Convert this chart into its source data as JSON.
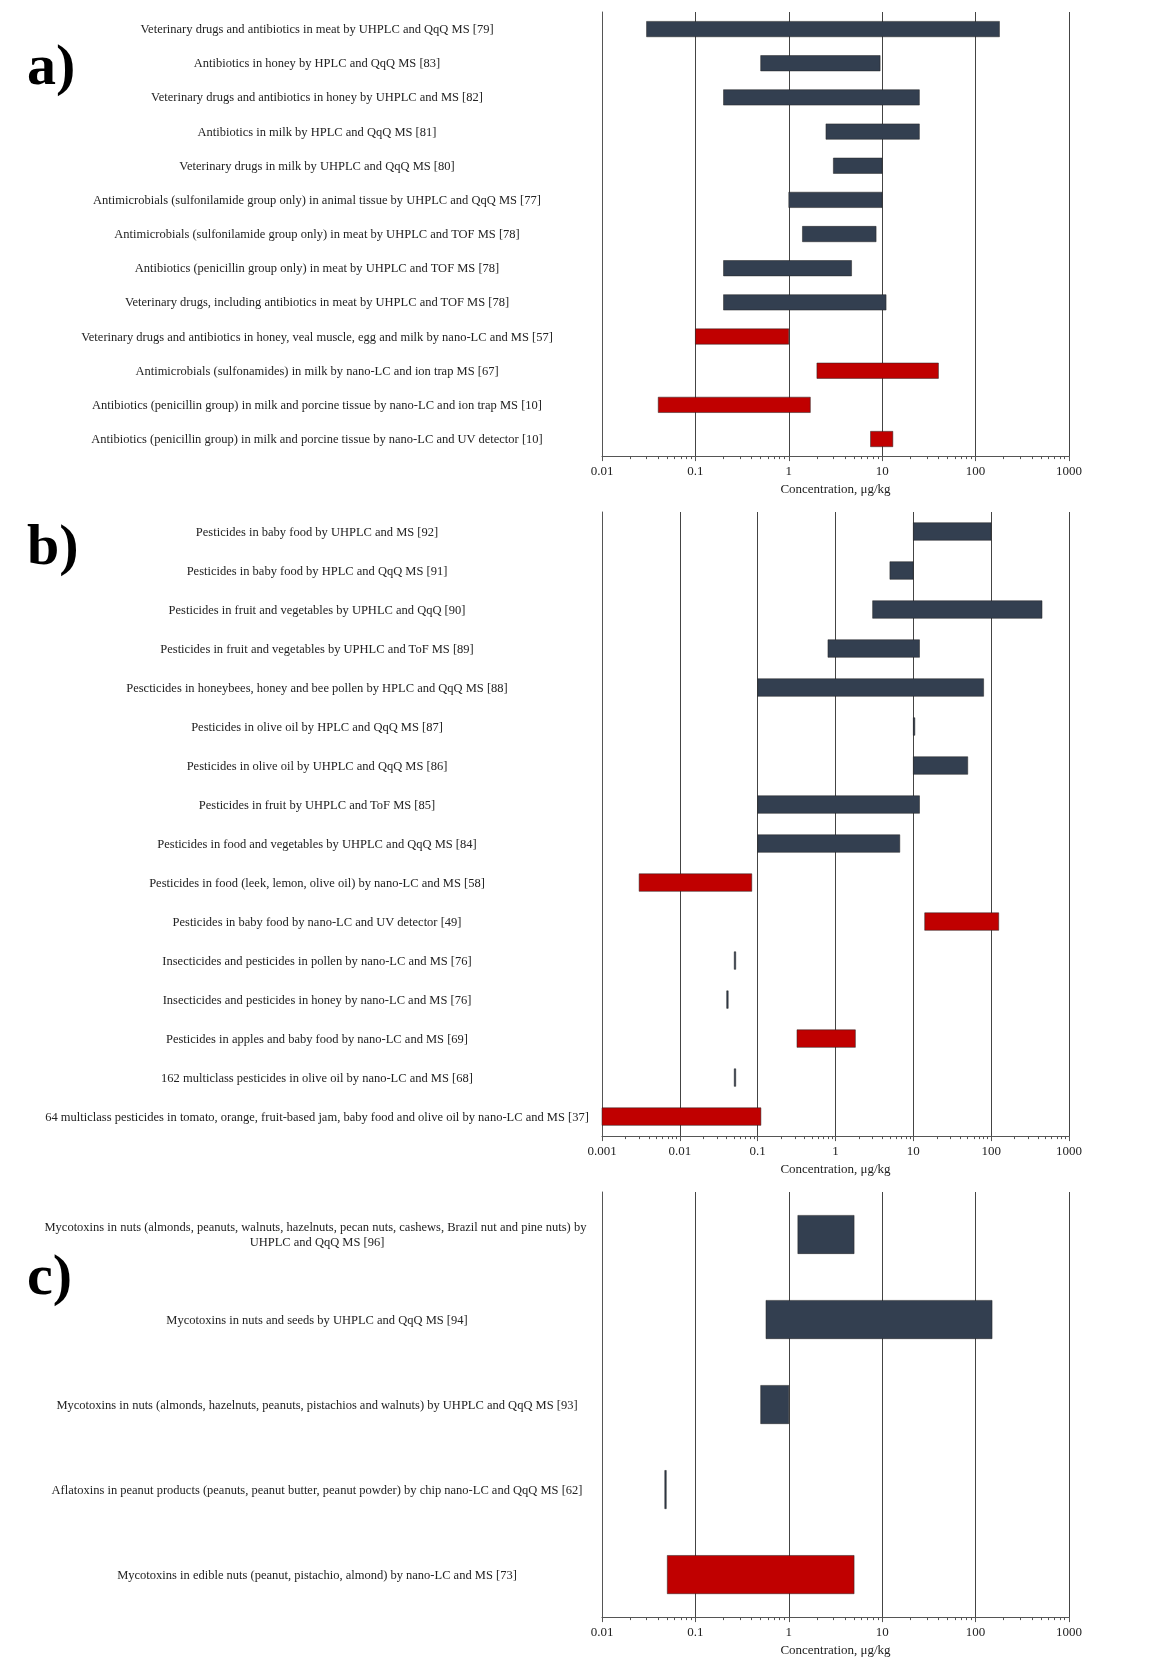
{
  "chart_data": [
    {
      "type": "bar",
      "title": "a)",
      "orientation": "horizontal",
      "log": "x",
      "grid": "x",
      "xlabel": "Concentration, μg/kg",
      "xlim": [
        0.01,
        1000
      ],
      "xticks": [
        0.01,
        0.1,
        1,
        10,
        100,
        1000
      ],
      "categories": [
        "Veterinary drugs and antibiotics in meat by UHPLC and QqQ MS [79]",
        "Antibiotics in honey by HPLC and QqQ MS [83]",
        "Veterinary drugs and antibiotics in honey by UHPLC and MS [82]",
        "Antibiotics in milk by HPLC and QqQ MS [81]",
        "Veterinary drugs in milk by UHPLC and QqQ MS [80]",
        "Antimicrobials (sulfonilamide group only) in animal tissue by UHPLC and QqQ MS [77]",
        "Antimicrobials (sulfonilamide group only) in meat by UHPLC and TOF MS [78]",
        "Antibiotics (penicillin group only) in meat by UHPLC and TOF MS [78]",
        "Veterinary drugs, including antibiotics in meat by UHPLC and TOF MS [78]",
        "Veterinary drugs and antibiotics in honey, veal muscle, egg and milk by nano-LC and MS [57]",
        "Antimicrobials (sulfonamides) in milk by nano-LC and ion trap MS [67]",
        "Antibiotics (penicillin group) in milk and porcine tissue by nano-LC and ion trap MS [10]",
        "Antibiotics (penicillin group) in milk and porcine tissue by nano-LC and UV detector [10]"
      ],
      "base": [
        0.03,
        0.5,
        0.2,
        2.5,
        3,
        1,
        1.4,
        0.2,
        0.2,
        0.1,
        2,
        0.04,
        7.5
      ],
      "values": [
        179.97,
        9,
        24.8,
        22.5,
        7,
        9,
        7.2,
        4.5,
        10.8,
        0.9,
        38,
        1.66,
        5.5
      ],
      "colors": [
        "#333f50",
        "#333f50",
        "#333f50",
        "#333f50",
        "#333f50",
        "#333f50",
        "#333f50",
        "#333f50",
        "#333f50",
        "#c00000",
        "#c00000",
        "#c00000",
        "#c00000"
      ]
    },
    {
      "type": "bar",
      "title": "b)",
      "orientation": "horizontal",
      "log": "x",
      "grid": "x",
      "xlabel": "Concentration, μg/kg",
      "xlim": [
        0.001,
        1000
      ],
      "xticks": [
        0.001,
        0.01,
        0.1,
        1,
        10,
        100,
        1000
      ],
      "categories": [
        "Pesticides in baby food by UHPLC and MS [92]",
        "Pesticides in baby food by HPLC and QqQ MS [91]",
        "Pesticides in fruit and vegetables by UPHLC and QqQ [90]",
        "Pesticides in fruit and vegetables by UPHLC and ToF MS [89]",
        "Pescticides in honeybees, honey and bee pollen by HPLC and QqQ MS [88]",
        "Pesticides in olive oil by HPLC and QqQ MS [87]",
        "Pesticides in olive oil by UHPLC and QqQ MS [86]",
        "Pesticides in fruit by UHPLC and ToF MS [85]",
        "Pesticides in food and vegetables by UHPLC and QqQ MS [84]",
        "Pesticides in food (leek, lemon, olive oil) by nano-LC and MS [58]",
        "Pesticides in baby food by nano-LC and UV detector [49]",
        "Insecticides and pesticides in pollen by nano-LC and MS [76]",
        "Insecticides and pesticides in honey by nano-LC and MS [76]",
        "Pesticides in apples and baby food by nano-LC and MS [69]",
        "162 multiclass pesticides in olive oil by nano-LC and MS [68]",
        "64 multiclass pesticides in tomato, orange, fruit-based jam, baby food and olive oil by nano-LC and MS [37]"
      ],
      "base": [
        10,
        5,
        3,
        0.8,
        0.1,
        10,
        10,
        0.1,
        0.1,
        0.003,
        14,
        0.05,
        0.04,
        0.32,
        0.05,
        0.001
      ],
      "values": [
        90,
        5,
        447,
        11.2,
        79.9,
        0.2,
        40,
        11.9,
        6.6,
        0.081,
        111,
        0.001,
        0.001,
        1.48,
        0.001,
        0.109
      ],
      "colors": [
        "#333f50",
        "#333f50",
        "#333f50",
        "#333f50",
        "#333f50",
        "#333f50",
        "#333f50",
        "#333f50",
        "#333f50",
        "#c00000",
        "#c00000",
        "#333f50",
        "#333f50",
        "#c00000",
        "#333f50",
        "#c00000"
      ]
    },
    {
      "type": "bar",
      "title": "c)",
      "orientation": "horizontal",
      "log": "x",
      "grid": "x",
      "xlabel": "Concentration, μg/kg",
      "xlim": [
        0.01,
        1000
      ],
      "xticks": [
        0.01,
        0.1,
        1,
        10,
        100,
        1000
      ],
      "categories": [
        "Mycotoxins in nuts (almonds, peanuts, walnuts, hazelnuts, pecan nuts, cashews, Brazil nut and pine nuts) by UHPLC and QqQ MS [96]",
        "Mycotoxins in nuts and seeds by UHPLC and QqQ MS [94]",
        "Mycotoxins in nuts (almonds, hazelnuts, peanuts, pistachios and walnuts) by UHPLC and QqQ MS [93]",
        "Aflatoxins in peanut products (peanuts, peanut butter, peanut powder) by chip nano-LC and QqQ MS [62]",
        "Mycotoxins in edible nuts (peanut, pistachio, almond) by nano-LC and MS [73]"
      ],
      "base": [
        1.25,
        0.57,
        0.5,
        0.047,
        0.05
      ],
      "values": [
        3.75,
        149.43,
        0.5,
        0.001,
        4.95
      ],
      "colors": [
        "#333f50",
        "#333f50",
        "#333f50",
        "#333f50",
        "#c00000"
      ]
    }
  ]
}
